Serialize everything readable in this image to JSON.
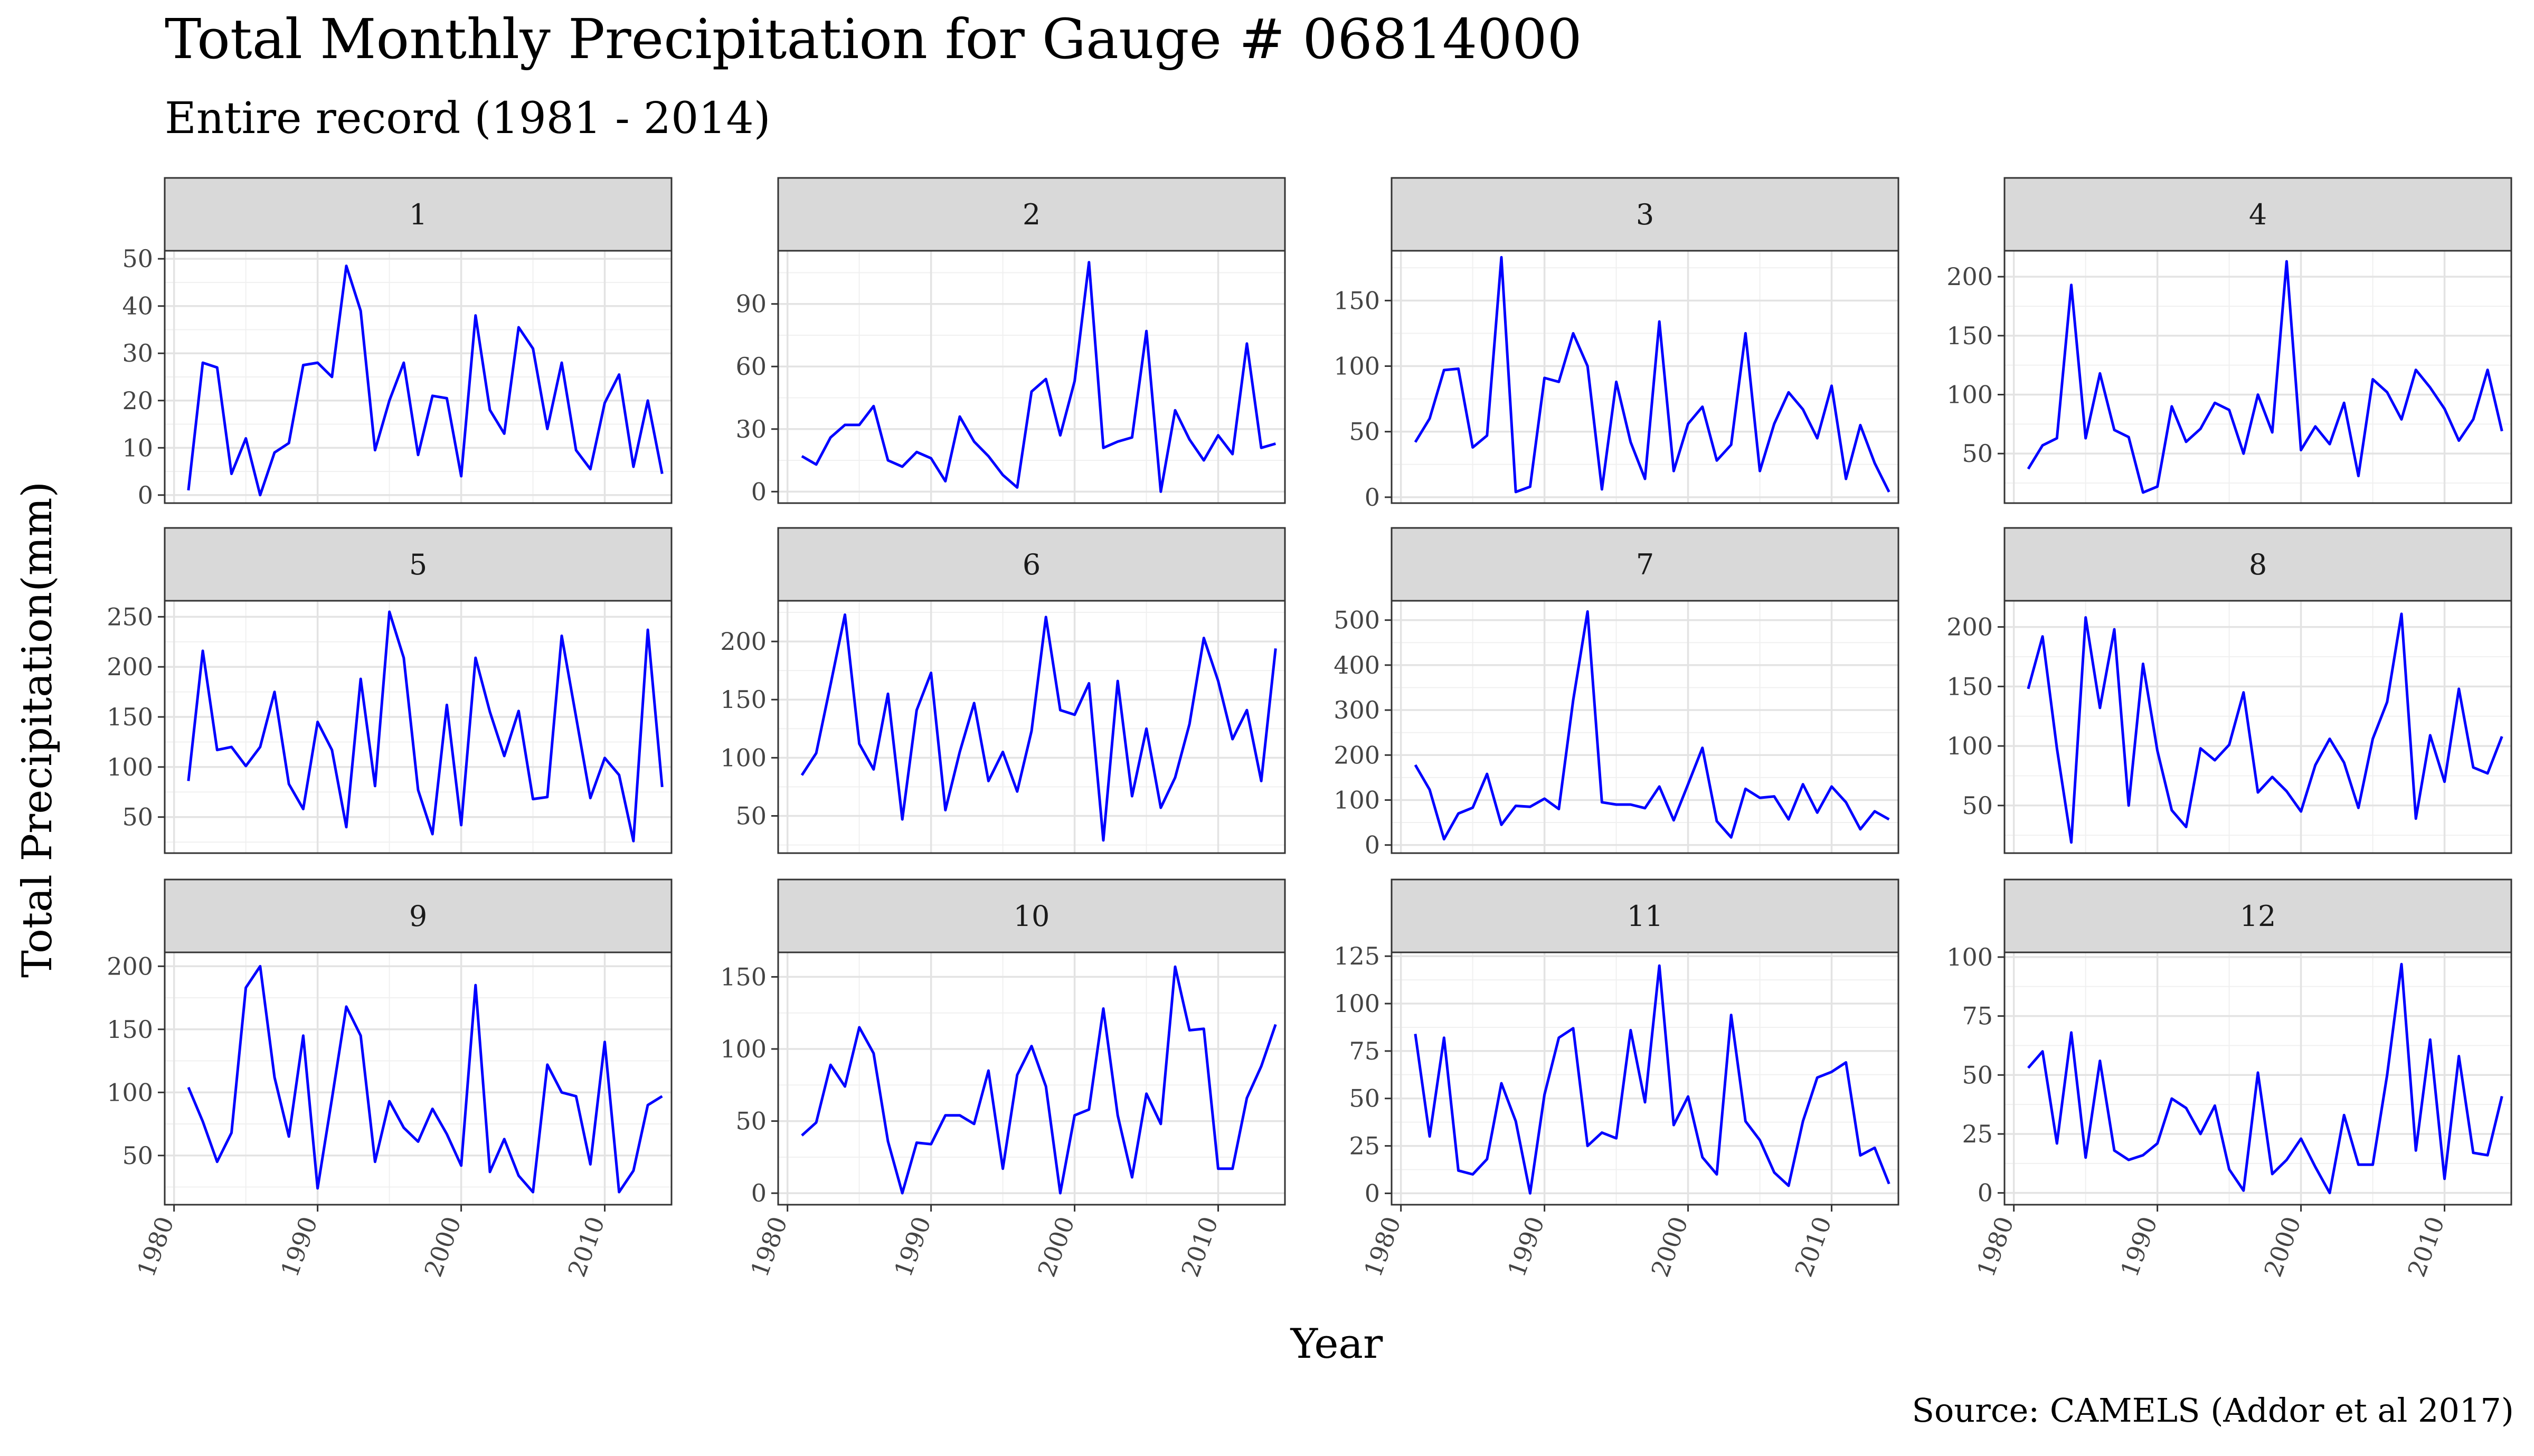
{
  "chart_data": {
    "type": "line",
    "title": "Total Monthly Precipitation for Gauge # 06814000",
    "subtitle": "Entire record (1981 - 2014)",
    "xlabel": "Year",
    "ylabel": "Total Precipitation(mm)",
    "caption": "Source: CAMELS (Addor et al 2017)",
    "line_color": "#0000ff",
    "grid": true,
    "x": [
      1981,
      1982,
      1983,
      1984,
      1985,
      1986,
      1987,
      1988,
      1989,
      1990,
      1991,
      1992,
      1993,
      1994,
      1995,
      1996,
      1997,
      1998,
      1999,
      2000,
      2001,
      2002,
      2003,
      2004,
      2005,
      2006,
      2007,
      2008,
      2009,
      2010,
      2011,
      2012,
      2013,
      2014
    ],
    "xlim": [
      1979.35,
      2014.65
    ],
    "x_ticks": [
      1980,
      1990,
      2000,
      2010
    ],
    "x_tick_labels": [
      "1980",
      "1990",
      "2000",
      "2010"
    ],
    "panels": [
      {
        "label": "1",
        "ylim": [
          -1.7,
          51.7
        ],
        "y_ticks": [
          0,
          10,
          20,
          30,
          40,
          50
        ],
        "y_tick_labels": [
          "0",
          "10",
          "20",
          "30",
          "40",
          "50"
        ],
        "values": [
          1,
          28,
          27,
          4.5,
          12,
          0,
          9,
          11,
          27.5,
          28,
          25,
          48.5,
          39,
          9.5,
          20,
          28,
          8.5,
          21,
          20.5,
          4,
          38,
          18,
          13,
          35.5,
          31,
          14,
          28,
          9.5,
          5.5,
          19.5,
          25.5,
          6,
          20,
          4.5
        ]
      },
      {
        "label": "2",
        "ylim": [
          -5.5,
          115.5
        ],
        "y_ticks": [
          0,
          30,
          60,
          90
        ],
        "y_tick_labels": [
          "0",
          "30",
          "60",
          "90"
        ],
        "values": [
          17,
          13,
          26,
          32,
          32,
          41,
          15,
          12,
          19,
          16,
          5,
          36,
          24,
          17,
          8,
          2,
          48,
          54,
          27,
          53,
          110,
          21,
          24,
          26,
          77,
          0,
          39,
          25,
          15,
          27,
          18,
          71,
          21,
          23
        ]
      },
      {
        "label": "3",
        "ylim": [
          -4.5,
          188
        ],
        "y_ticks": [
          0,
          50,
          100,
          150
        ],
        "y_tick_labels": [
          "0",
          "50",
          "100",
          "150"
        ],
        "values": [
          42,
          60,
          97,
          98,
          38,
          47,
          183,
          4,
          8,
          91,
          88,
          125,
          100,
          6,
          88,
          42,
          14,
          134,
          20,
          56,
          69,
          28,
          40,
          125,
          20,
          56,
          80,
          67,
          45,
          85,
          14,
          55,
          26,
          4
        ]
      },
      {
        "label": "4",
        "ylim": [
          8,
          222
        ],
        "y_ticks": [
          50,
          100,
          150,
          200
        ],
        "y_tick_labels": [
          "50",
          "100",
          "150",
          "200"
        ],
        "values": [
          37,
          57,
          63,
          193,
          63,
          118,
          70,
          64,
          17,
          22,
          90,
          60,
          71,
          93,
          87,
          50,
          100,
          68,
          213,
          53,
          73,
          58,
          93,
          31,
          113,
          102,
          79,
          121,
          106,
          88,
          61,
          79,
          121,
          69
        ]
      },
      {
        "label": "5",
        "ylim": [
          14,
          266
        ],
        "y_ticks": [
          50,
          100,
          150,
          200,
          250
        ],
        "y_tick_labels": [
          "50",
          "100",
          "150",
          "200",
          "250"
        ],
        "values": [
          86,
          216,
          117,
          120,
          101,
          120,
          175,
          83,
          58,
          145,
          117,
          40,
          188,
          81,
          255,
          209,
          77,
          33,
          162,
          42,
          209,
          155,
          111,
          156,
          68,
          70,
          231,
          150,
          69,
          109,
          92,
          26,
          237,
          80
        ]
      },
      {
        "label": "6",
        "ylim": [
          18,
          235
        ],
        "y_ticks": [
          50,
          100,
          150,
          200
        ],
        "y_tick_labels": [
          "50",
          "100",
          "150",
          "200"
        ],
        "values": [
          85,
          104,
          163,
          223,
          112,
          90,
          155,
          47,
          141,
          173,
          55,
          105,
          147,
          80,
          105,
          71,
          123,
          221,
          141,
          137,
          164,
          29,
          166,
          67,
          125,
          57,
          83,
          129,
          203,
          166,
          116,
          141,
          80,
          194
        ]
      },
      {
        "label": "7",
        "ylim": [
          -18,
          543
        ],
        "y_ticks": [
          0,
          100,
          200,
          300,
          400,
          500
        ],
        "y_tick_labels": [
          "0",
          "100",
          "200",
          "300",
          "400",
          "500"
        ],
        "values": [
          178,
          123,
          13,
          70,
          83,
          158,
          45,
          87,
          85,
          103,
          80,
          322,
          519,
          95,
          90,
          90,
          82,
          130,
          55,
          135,
          216,
          53,
          17,
          125,
          105,
          108,
          57,
          135,
          72,
          130,
          95,
          35,
          75,
          57
        ]
      },
      {
        "label": "8",
        "ylim": [
          10,
          222
        ],
        "y_ticks": [
          50,
          100,
          150,
          200
        ],
        "y_tick_labels": [
          "50",
          "100",
          "150",
          "200"
        ],
        "values": [
          148,
          192,
          98,
          19,
          208,
          132,
          198,
          50,
          169,
          96,
          46,
          32,
          98,
          88,
          101,
          145,
          61,
          74,
          62,
          45,
          84,
          106,
          86,
          48,
          106,
          137,
          211,
          39,
          109,
          70,
          148,
          82,
          77,
          108
        ]
      },
      {
        "label": "9",
        "ylim": [
          11,
          211
        ],
        "y_ticks": [
          50,
          100,
          150,
          200
        ],
        "y_tick_labels": [
          "50",
          "100",
          "150",
          "200"
        ],
        "values": [
          104,
          77,
          45,
          68,
          183,
          200,
          112,
          65,
          145,
          24,
          95,
          168,
          145,
          45,
          93,
          72,
          61,
          87,
          67,
          42,
          185,
          37,
          63,
          34,
          21,
          122,
          100,
          97,
          43,
          140,
          21,
          38,
          90,
          97
        ]
      },
      {
        "label": "10",
        "ylim": [
          -8,
          167
        ],
        "y_ticks": [
          0,
          50,
          100,
          150
        ],
        "y_tick_labels": [
          "0",
          "50",
          "100",
          "150"
        ],
        "values": [
          40,
          49,
          89,
          74,
          115,
          97,
          36,
          0,
          35,
          34,
          54,
          54,
          48,
          85,
          17,
          82,
          102,
          74,
          0,
          54,
          58,
          128,
          54,
          11,
          69,
          48,
          157,
          113,
          114,
          17,
          17,
          66,
          88,
          117
        ]
      },
      {
        "label": "11",
        "ylim": [
          -6,
          127
        ],
        "y_ticks": [
          0,
          25,
          50,
          75,
          100,
          125
        ],
        "y_tick_labels": [
          "0",
          "25",
          "50",
          "75",
          "100",
          "125"
        ],
        "values": [
          84,
          30,
          82,
          12,
          10,
          18,
          58,
          38,
          0,
          52,
          82,
          87,
          25,
          32,
          29,
          86,
          48,
          120,
          36,
          51,
          19,
          10,
          94,
          38,
          28,
          11,
          4,
          38,
          61,
          64,
          69,
          20,
          24,
          5
        ]
      },
      {
        "label": "12",
        "ylim": [
          -5,
          102
        ],
        "y_ticks": [
          0,
          25,
          50,
          75,
          100
        ],
        "y_tick_labels": [
          "0",
          "25",
          "50",
          "75",
          "100"
        ],
        "values": [
          53,
          60,
          21,
          68,
          15,
          56,
          18,
          14,
          16,
          21,
          40,
          36,
          25,
          37,
          10,
          1,
          51,
          8,
          14,
          23,
          11,
          0,
          33,
          12,
          12,
          50,
          97,
          18,
          65,
          6,
          58,
          17,
          16,
          41
        ]
      }
    ]
  }
}
